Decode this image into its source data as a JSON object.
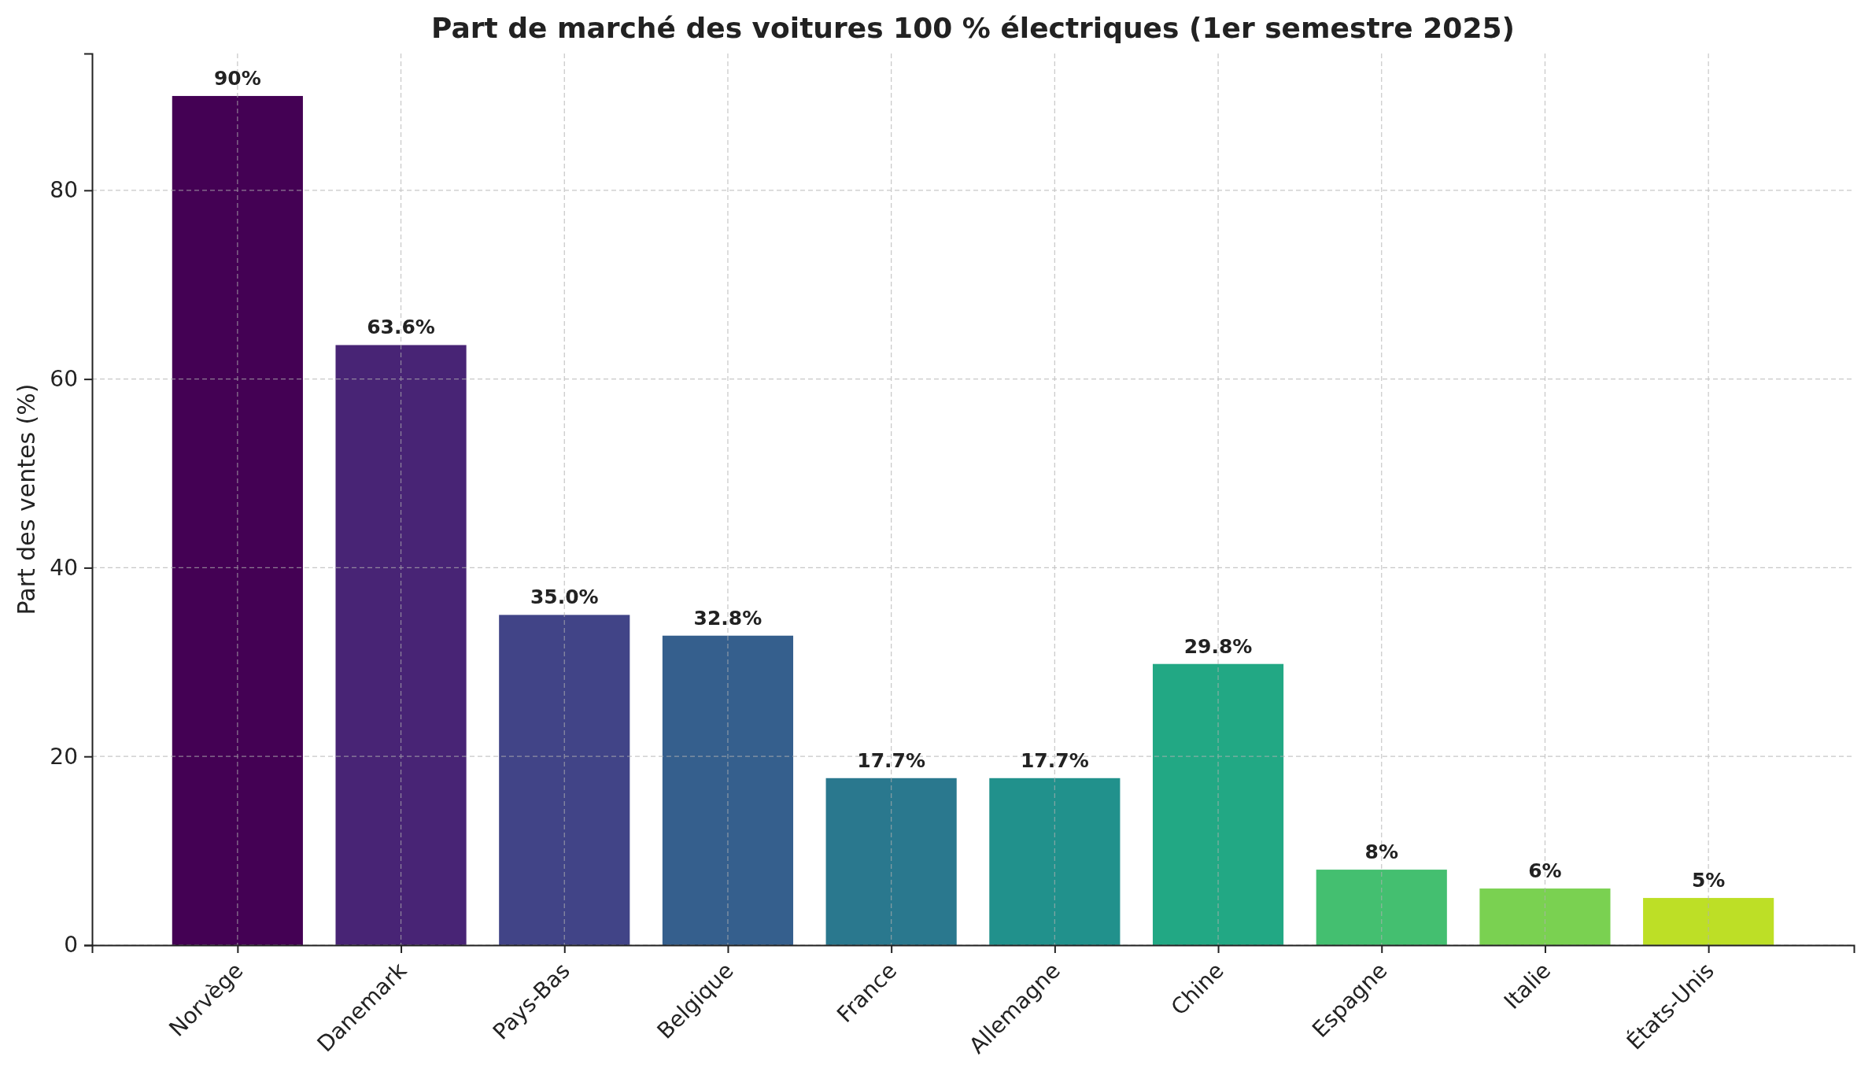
{
  "chart_data": {
    "type": "bar",
    "title": "Part de marché des voitures 100 % électriques (1er semestre 2025)",
    "ylabel": "Part des ventes (%)",
    "categories": [
      "Norvège",
      "Danemark",
      "Pays-Bas",
      "Belgique",
      "France",
      "Allemagne",
      "Chine",
      "Espagne",
      "Italie",
      "États-Unis"
    ],
    "values": [
      90,
      63.6,
      35.0,
      32.8,
      17.7,
      17.7,
      29.8,
      8,
      6,
      5
    ],
    "value_labels": [
      "90%",
      "63.6%",
      "35.0%",
      "32.8%",
      "17.7%",
      "17.7%",
      "29.8%",
      "8%",
      "6%",
      "5%"
    ],
    "colors": [
      "#440154",
      "#482475",
      "#414487",
      "#355f8d",
      "#2a788e",
      "#21918c",
      "#22a884",
      "#44bf70",
      "#7ad151",
      "#bddf26"
    ],
    "ylim": [
      0,
      94.5
    ],
    "yticks": [
      0,
      20,
      40,
      60,
      80
    ],
    "grid": true
  }
}
